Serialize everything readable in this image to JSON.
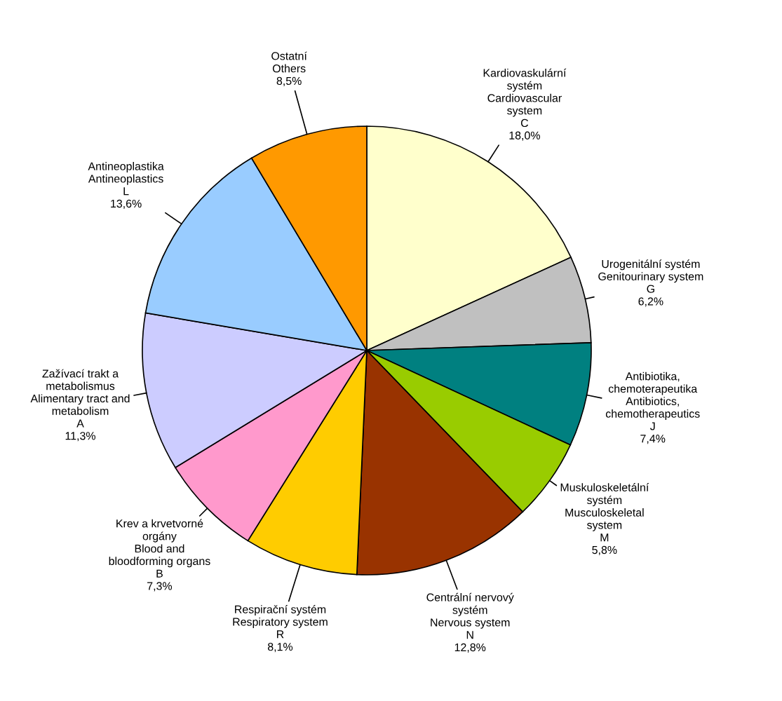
{
  "chart_data": {
    "type": "pie",
    "categories": [
      "Kardiovaskulární\nsystém\nCardiovascular\nsystem\nC",
      "Urogenitální systém\nGenitourinary system\nG",
      "Antibiotika,\nchemoterapeutika\nAntibiotics,\nchemotherapeutics\nJ",
      "Muskuloskeletální\nsystém\nMusculoskeletal\nsystem\nM",
      "Centrální nervový\nsystém\nNervous system\nN",
      "Respirační systém\nRespiratory system\nR",
      "Krev a krvetvorné\norgány\nBlood and\nbloodforming organs\nB",
      "Zažívací trakt a\nmetabolismus\nAlimentary tract and\nmetabolism\nA",
      "Antineoplastika\nAntineoplastics\nL",
      "Ostatní\nOthers"
    ],
    "values": [
      18.0,
      6.2,
      7.4,
      5.8,
      12.8,
      8.1,
      7.3,
      11.3,
      13.6,
      8.5
    ],
    "value_labels": [
      "18,0%",
      "6,2%",
      "7,4%",
      "5,8%",
      "12,8%",
      "8,1%",
      "7,3%",
      "11,3%",
      "13,6%",
      "8,5%"
    ],
    "colors": [
      "#ffffcc",
      "#c0c0c0",
      "#008080",
      "#99cc00",
      "#993300",
      "#ffcc00",
      "#ff99cc",
      "#ccccff",
      "#99ccff",
      "#ff9900"
    ]
  }
}
